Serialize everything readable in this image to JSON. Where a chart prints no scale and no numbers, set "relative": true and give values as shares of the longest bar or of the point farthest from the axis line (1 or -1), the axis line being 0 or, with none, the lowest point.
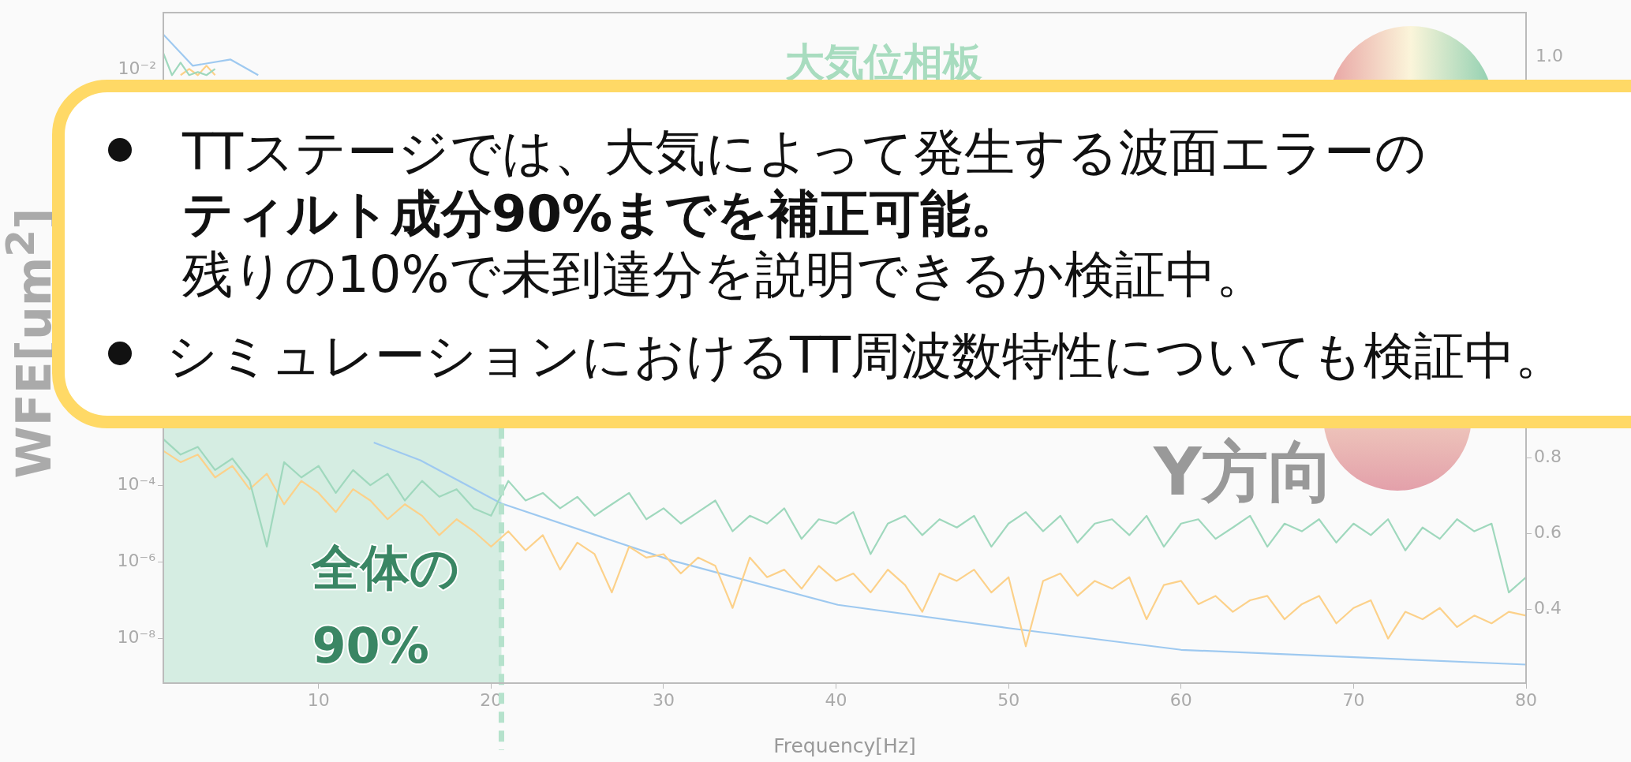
{
  "chart_data": [
    {
      "type": "line",
      "relative": true,
      "xlim": [
        1,
        80
      ],
      "marker": "none",
      "annotations": [
        "TTステージでは、大気によって発生する波面エラーの",
        "ティルト成分90%までを補正可能。",
        "残りの10%で未到達分を説明できるか検証中。",
        "シミュレーションにおけるTT周波数特性についても検証中。",
        "大気位相板",
        "10⁻²",
        "1.0"
      ],
      "series": [
        {
          "color": "#9fd8bd",
          "x": [
            1,
            1.5,
            2,
            2.5,
            3,
            3.5,
            4
          ],
          "values": [
            0.94,
            0.87,
            0.91,
            0.87,
            0.88,
            0.87,
            0.89
          ]
        },
        {
          "color": "#fcd18a",
          "x": [
            2,
            2.5,
            3,
            3.5,
            4
          ],
          "values": [
            0.87,
            0.89,
            0.87,
            0.9,
            0.87
          ]
        },
        {
          "color": "#9ec9f0",
          "x": [
            1,
            2.7,
            4.9,
            6.5
          ],
          "values": [
            1,
            0.9,
            0.92,
            0.87
          ]
        }
      ]
    },
    {
      "type": "line",
      "xlabel": "Frequency[Hz]",
      "ylabel": "WFE[um$^{2}$]",
      "xlim": [
        1,
        80
      ],
      "xticks": [
        10,
        20,
        30,
        40,
        50,
        60,
        70,
        80
      ],
      "ylim": [
        6.9e-10,
        0.3
      ],
      "yticks": [
        {
          "value": 0.0001,
          "label": "10⁻⁴"
        },
        {
          "value": 1e-06,
          "label": "10⁻⁶"
        },
        {
          "value": 1e-08,
          "label": "10⁻⁸"
        }
      ],
      "y2lim": [
        0.205,
        1.08
      ],
      "y2ticks": [
        0.4,
        0.6,
        0.8
      ],
      "log": "y",
      "marker": "none",
      "annotations": [
        "Y方向"
      ],
      "bands": [
        {
          "axis": "x",
          "from": 1,
          "to": 20.6,
          "label": "全体の90%",
          "color": "#d5ede2"
        }
      ],
      "ref_lines": [
        {
          "axis": "x",
          "value": 20.6,
          "color": "#b5e2cc",
          "line_style": "dashed"
        }
      ],
      "x": [
        1,
        2,
        3,
        4,
        5,
        6,
        7,
        8,
        9,
        10,
        11,
        12,
        13,
        14,
        15,
        16,
        17,
        18,
        19,
        20,
        21,
        22,
        23,
        24,
        25,
        26,
        27,
        28,
        29,
        30,
        31,
        32,
        33,
        34,
        35,
        36,
        37,
        38,
        39,
        40,
        41,
        42,
        43,
        44,
        45,
        46,
        47,
        48,
        49,
        50,
        51,
        52,
        53,
        54,
        55,
        56,
        57,
        58,
        59,
        60,
        61,
        62,
        63,
        64,
        65,
        66,
        67,
        68,
        69,
        70,
        71,
        72,
        73,
        74,
        75,
        76,
        77,
        78,
        79,
        80
      ],
      "series": [
        {
          "color": "#9fd8bd",
          "values": [
            0.0016,
            0.00063,
            0.001,
            0.00025,
            0.0005,
            0.00013,
            2.5e-06,
            0.0004,
            0.00016,
            0.00032,
            6.3e-05,
            0.00025,
            0.0001,
            0.0002,
            4e-05,
            0.00013,
            5e-05,
            7.9e-05,
            2.5e-05,
            1.6e-05,
            0.00013,
            4e-05,
            6.3e-05,
            2.5e-05,
            5e-05,
            1.6e-05,
            3.2e-05,
            6.3e-05,
            1.3e-05,
            2.5e-05,
            1e-05,
            2e-05,
            4e-05,
            6.3e-06,
            1.6e-05,
            1e-05,
            2.5e-05,
            4e-06,
            1.3e-05,
            1e-05,
            2e-05,
            1.6e-06,
            1e-05,
            1.6e-05,
            5e-06,
            1.3e-05,
            7.9e-06,
            1.6e-05,
            2.5e-06,
            1e-05,
            2e-05,
            6.3e-06,
            1.6e-05,
            3.2e-06,
            1e-05,
            1.3e-05,
            5e-06,
            1.6e-05,
            2.5e-06,
            1e-05,
            1.3e-05,
            4e-06,
            7.9e-06,
            1.6e-05,
            2.5e-06,
            1e-05,
            6.3e-06,
            1.3e-05,
            3.2e-06,
            1e-05,
            5e-06,
            1.3e-05,
            2e-06,
            7.9e-06,
            4e-06,
            1.3e-05,
            6.3e-06,
            1e-05,
            1.6e-07,
            4e-07
          ]
        },
        {
          "color": "#fcd18a",
          "values": [
            0.00079,
            0.0004,
            0.00063,
            0.00016,
            0.00032,
            7.9e-05,
            0.0002,
            3.2e-05,
            0.00013,
            6.3e-05,
            2e-05,
            7.9e-05,
            4e-05,
            1.3e-05,
            3.2e-05,
            1.6e-05,
            5e-06,
            1.3e-05,
            6.3e-06,
            2.5e-06,
            6.3e-06,
            2e-06,
            5e-06,
            6.3e-07,
            3.2e-06,
            1.6e-06,
            1.6e-07,
            2.5e-06,
            1.3e-06,
            1.6e-06,
            5e-07,
            1.3e-06,
            7.9e-07,
            6.3e-08,
            1.3e-06,
            4e-07,
            6.3e-07,
            2e-07,
            7.9e-07,
            3.2e-07,
            5e-07,
            1.6e-07,
            6.3e-07,
            2.5e-07,
            5e-08,
            5e-07,
            3.2e-07,
            6.3e-07,
            1.6e-07,
            4e-07,
            6.3e-09,
            3.2e-07,
            5e-07,
            1.3e-07,
            3.2e-07,
            2e-07,
            4e-07,
            3.2e-08,
            2.5e-07,
            3.2e-07,
            7.9e-08,
            1.3e-07,
            5e-08,
            1e-07,
            1.3e-07,
            3.2e-08,
            7.9e-08,
            1.3e-07,
            2.5e-08,
            6.3e-08,
            1e-07,
            1e-08,
            5e-08,
            3.2e-08,
            6.3e-08,
            2e-08,
            4e-08,
            2.5e-08,
            5e-08,
            4e-08
          ]
        },
        {
          "color": "#9ec9f0",
          "x": [
            13.2,
            15.9,
            20.57,
            30.45,
            40.1,
            49.9,
            60,
            80
          ],
          "values": [
            0.0013,
            0.00045,
            3.4e-05,
            1.1e-06,
            7.6e-08,
            1.9e-08,
            5.1e-09,
            2.1e-09
          ]
        }
      ]
    }
  ]
}
